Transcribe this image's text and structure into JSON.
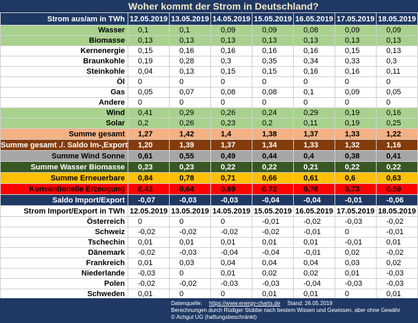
{
  "title": "Woher kommt der Strom in Deutschland?",
  "table": {
    "header": [
      "Strom aus/am in TWh",
      "12.05.2019",
      "13.05.2019",
      "14.05.2019",
      "15.05.2019",
      "16.05.2019",
      "17.05.2019",
      "18.05.2019"
    ],
    "rows": [
      {
        "label": "Wasser",
        "values": [
          "0,1",
          "0,1",
          "0,09",
          "0,09",
          "0,08",
          "0,09",
          "0,09"
        ]
      },
      {
        "label": "Biomasse",
        "values": [
          "0,13",
          "0,13",
          "0,13",
          "0,13",
          "0,13",
          "0,13",
          "0,13"
        ]
      },
      {
        "label": "Kernenergie",
        "values": [
          "0,15",
          "0,16",
          "0,16",
          "0,16",
          "0,16",
          "0,15",
          "0,13"
        ]
      },
      {
        "label": "Braunkohle",
        "values": [
          "0,19",
          "0,28",
          "0,3",
          "0,35",
          "0,34",
          "0,33",
          "0,3"
        ]
      },
      {
        "label": "Steinkohle",
        "values": [
          "0,04",
          "0,13",
          "0,15",
          "0,15",
          "0,16",
          "0,16",
          "0,11"
        ]
      },
      {
        "label": "Öl",
        "values": [
          "0",
          "0",
          "0",
          "0",
          "0",
          "0",
          "0"
        ]
      },
      {
        "label": "Gas",
        "values": [
          "0,05",
          "0,07",
          "0,08",
          "0,08",
          "0,1",
          "0,09",
          "0,05"
        ]
      },
      {
        "label": "Andere",
        "values": [
          "0",
          "0",
          "0",
          "0",
          "0",
          "0",
          "0"
        ]
      },
      {
        "label": "Wind",
        "values": [
          "0,41",
          "0,29",
          "0,26",
          "0,24",
          "0,29",
          "0,19",
          "0,16"
        ]
      },
      {
        "label": "Solar",
        "values": [
          "0,2",
          "0,26",
          "0,23",
          "0,2",
          "0,11",
          "0,19",
          "0,25"
        ]
      },
      {
        "label": "Summe gesamt",
        "values": [
          "1,27",
          "1,42",
          "1,4",
          "1,38",
          "1,37",
          "1,33",
          "1,22"
        ]
      },
      {
        "label": "Summe gesamt ./. Saldo Im-,Export",
        "values": [
          "1,20",
          "1,39",
          "1,37",
          "1,34",
          "1,33",
          "1,32",
          "1,16"
        ]
      },
      {
        "label": "Summe Wind Sonne",
        "values": [
          "0,61",
          "0,55",
          "0,49",
          "0,44",
          "0,4",
          "0,38",
          "0,41"
        ]
      },
      {
        "label": "Summe Wasser Biomasse",
        "values": [
          "0,23",
          "0,23",
          "0,22",
          "0,22",
          "0,21",
          "0,22",
          "0,22"
        ]
      },
      {
        "label": "Summe Erneuerbare",
        "values": [
          "0,84",
          "0,78",
          "0,71",
          "0,66",
          "0,61",
          "0,6",
          "0,63"
        ]
      },
      {
        "label": "Konventionelle Erzeugung",
        "values": [
          "0,43",
          "0,64",
          "0,69",
          "0,72",
          "0,76",
          "0,73",
          "0,59"
        ]
      },
      {
        "label": "Saldo Import/Export",
        "values": [
          "-0,07",
          "-0,03",
          "-0,03",
          "-0,04",
          "-0,04",
          "-0,01",
          "-0,06"
        ]
      }
    ]
  },
  "table2": {
    "header": [
      "Strom Import/Export in TWh",
      "12.05.2019",
      "13.05.2019",
      "14.05.2019",
      "15.05.2019",
      "16.05.2019",
      "17.05.2019",
      "18.05.2019"
    ],
    "rows": [
      {
        "label": "Österreich",
        "values": [
          "0",
          "0",
          "0",
          "-0,01",
          "-0,02",
          "-0,03",
          "-0,02"
        ]
      },
      {
        "label": "Schweiz",
        "values": [
          "-0,02",
          "-0,02",
          "-0,02",
          "-0,02",
          "-0,01",
          "0",
          "-0,01"
        ]
      },
      {
        "label": "Tschechin",
        "values": [
          "0,01",
          "0,01",
          "0,01",
          "0,01",
          "0,01",
          "-0,01",
          "0,01"
        ]
      },
      {
        "label": "Dänemark",
        "values": [
          "-0,02",
          "-0,03",
          "-0,04",
          "-0,04",
          "-0,01",
          "0,02",
          "-0,02"
        ]
      },
      {
        "label": "Frankreich",
        "values": [
          "0,01",
          "0,03",
          "0,04",
          "0,04",
          "0,04",
          "0,03",
          "0,02"
        ]
      },
      {
        "label": "Niederlande",
        "values": [
          "-0,03",
          "0",
          "0,01",
          "0,02",
          "0,02",
          "0,01",
          "-0,03"
        ]
      },
      {
        "label": "Polen",
        "values": [
          "-0,02",
          "-0,02",
          "-0,03",
          "-0,03",
          "-0,04",
          "-0,03",
          "-0,03"
        ]
      },
      {
        "label": "Schweden",
        "values": [
          "0,01",
          "0",
          "0",
          "0,01",
          "0,01",
          "0",
          "0,01"
        ]
      }
    ]
  },
  "footer": {
    "source_label": "Datenquelle:",
    "source_url": "https://www.energy-charts.de",
    "stand": "Stand: 26.05.2019",
    "note": "Berechnungen durch Rüdiger Stobbe nach bestem Wissen und Gewissen, aber ohne Gewähr",
    "copyright": "© Achgut UG (haftungsbeschränkt)"
  }
}
